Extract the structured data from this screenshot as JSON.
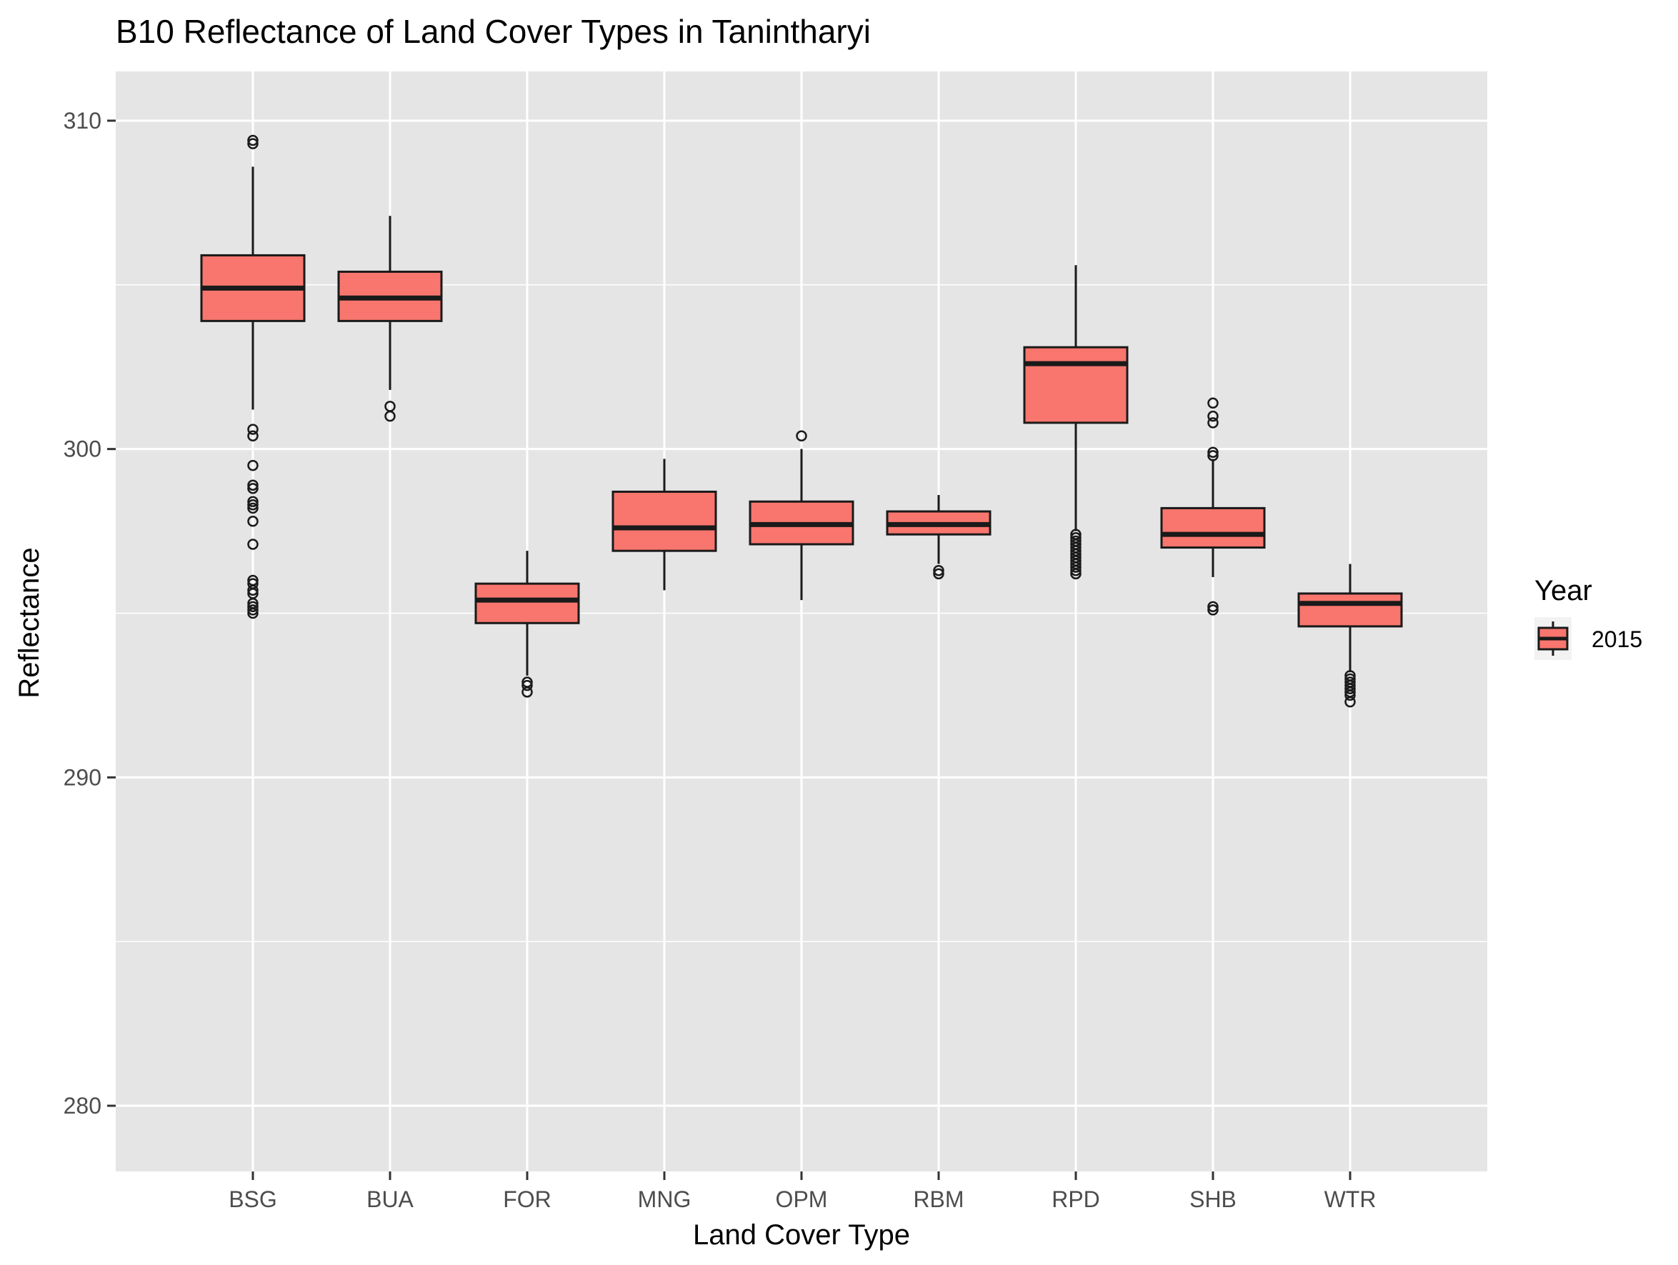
{
  "chart_data": {
    "type": "boxplot",
    "title": "B10 Reflectance of Land Cover Types in Tanintharyi",
    "xlabel": "Land Cover Type",
    "ylabel": "Reflectance",
    "ylim": [
      278.0,
      311.5
    ],
    "yticks": [
      280,
      290,
      300,
      310
    ],
    "ytick_labels": [
      "280",
      "290",
      "300",
      "310"
    ],
    "grid": true,
    "legend": {
      "title": "Year",
      "position": "right",
      "entries": [
        "2015"
      ]
    },
    "colors": {
      "fill": "#F8766D",
      "outline": "#1a1a1a",
      "panel": "#E5E5E5",
      "grid": "#FFFFFF"
    },
    "categories": [
      "BSG",
      "BUA",
      "FOR",
      "MNG",
      "OPM",
      "RBM",
      "RPD",
      "SHB",
      "WTR"
    ],
    "series": [
      {
        "name": "2015",
        "boxes": [
          {
            "category": "BSG",
            "low": 301.2,
            "q1": 303.9,
            "median": 304.9,
            "q3": 305.9,
            "high": 308.6,
            "outliers": [
              309.3,
              309.4,
              300.6,
              300.4,
              299.5,
              298.9,
              298.8,
              298.4,
              298.3,
              298.2,
              297.8,
              297.1,
              296.0,
              295.9,
              295.7,
              295.6,
              295.3,
              295.2,
              295.1,
              295.0
            ]
          },
          {
            "category": "BUA",
            "low": 301.8,
            "q1": 303.9,
            "median": 304.6,
            "q3": 305.4,
            "high": 307.1,
            "outliers": [
              301.3,
              301.0
            ]
          },
          {
            "category": "FOR",
            "low": 293.1,
            "q1": 294.7,
            "median": 295.4,
            "q3": 295.9,
            "high": 296.9,
            "outliers": [
              292.9,
              292.8,
              292.6
            ]
          },
          {
            "category": "MNG",
            "low": 295.7,
            "q1": 296.9,
            "median": 297.6,
            "q3": 298.7,
            "high": 299.7,
            "outliers": []
          },
          {
            "category": "OPM",
            "low": 295.4,
            "q1": 297.1,
            "median": 297.7,
            "q3": 298.4,
            "high": 300.0,
            "outliers": [
              300.4
            ]
          },
          {
            "category": "RBM",
            "low": 296.5,
            "q1": 297.4,
            "median": 297.7,
            "q3": 298.1,
            "high": 298.6,
            "outliers": [
              296.3,
              296.2
            ]
          },
          {
            "category": "RPD",
            "low": 297.5,
            "q1": 300.8,
            "median": 302.6,
            "q3": 303.1,
            "high": 305.6,
            "outliers": [
              297.4,
              297.3,
              297.2,
              297.1,
              297.0,
              296.9,
              296.8,
              296.7,
              296.6,
              296.5,
              296.4,
              296.3,
              296.2
            ]
          },
          {
            "category": "SHB",
            "low": 296.1,
            "q1": 297.0,
            "median": 297.4,
            "q3": 298.2,
            "high": 299.7,
            "outliers": [
              301.4,
              301.0,
              300.8,
              299.9,
              299.8,
              295.2,
              295.1
            ]
          },
          {
            "category": "WTR",
            "low": 293.2,
            "q1": 294.6,
            "median": 295.3,
            "q3": 295.6,
            "high": 296.5,
            "outliers": [
              293.1,
              293.0,
              292.9,
              292.8,
              292.7,
              292.6,
              292.5,
              292.3
            ]
          }
        ]
      }
    ]
  }
}
